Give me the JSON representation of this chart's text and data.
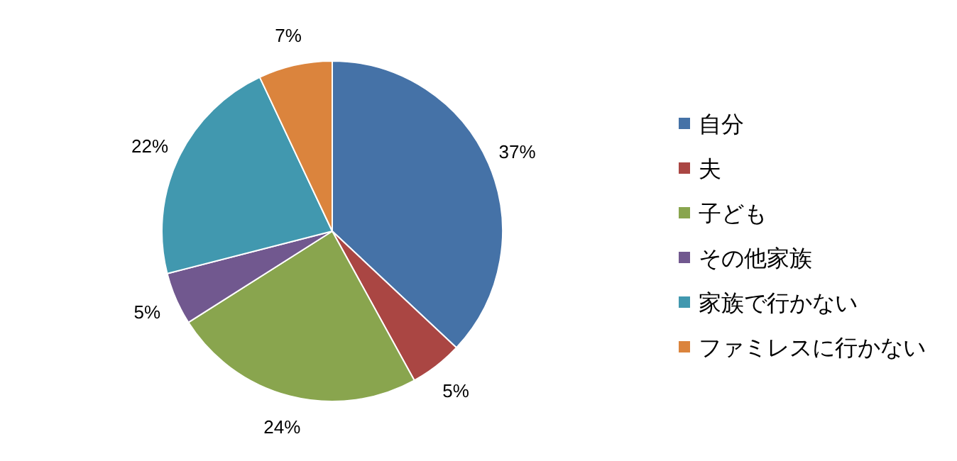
{
  "chart_data": {
    "type": "pie",
    "categories": [
      "自分",
      "夫",
      "子ども",
      "その他家族",
      "家族で行かない",
      "ファミレスに行かない"
    ],
    "values": [
      37,
      5,
      24,
      5,
      22,
      7
    ],
    "value_labels": [
      "37%",
      "5%",
      "24%",
      "5%",
      "22%",
      "7%"
    ],
    "colors": [
      "#4572a7",
      "#aa4643",
      "#89a54e",
      "#71588f",
      "#4198af",
      "#db843d"
    ],
    "legend": "right"
  }
}
